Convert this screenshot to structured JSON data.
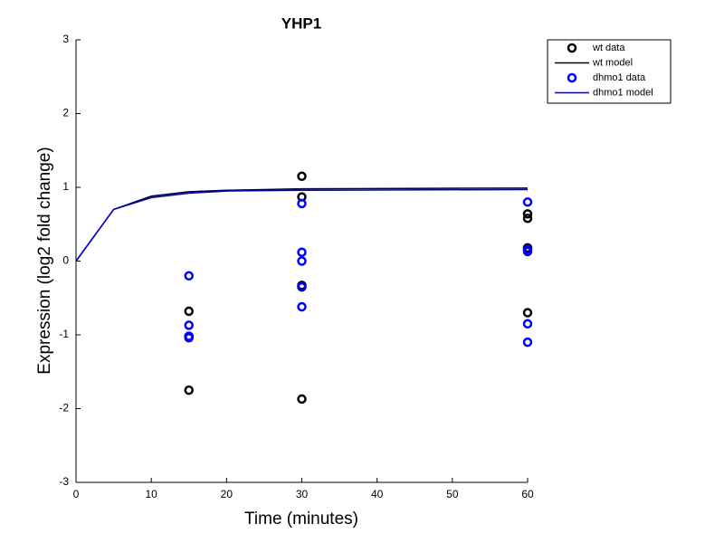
{
  "chart_data": {
    "type": "scatter",
    "title": "YHP1",
    "x_label": "Time (minutes)",
    "y_label": "Expression (log2 fold change)",
    "xlim": [
      0,
      60
    ],
    "ylim": [
      -3,
      3
    ],
    "xticks": [
      0,
      10,
      20,
      30,
      40,
      50,
      60
    ],
    "yticks": [
      -3,
      -2,
      -1,
      0,
      1,
      2,
      3
    ],
    "legend": "upper right",
    "series": [
      {
        "name": "wt data",
        "mode": "markers",
        "color": "#000000",
        "x": [
          15,
          15,
          15,
          30,
          30,
          30,
          30,
          30,
          60,
          60,
          60,
          60,
          60
        ],
        "values": [
          -0.68,
          -1.02,
          -1.75,
          1.15,
          0.87,
          -0.33,
          -0.35,
          -1.87,
          0.64,
          0.58,
          0.18,
          0.17,
          -0.7
        ]
      },
      {
        "name": "wt model",
        "mode": "line",
        "color": "#000000",
        "x": [
          0,
          5,
          10,
          15,
          20,
          30,
          60
        ],
        "values": [
          0,
          0.7,
          0.88,
          0.94,
          0.96,
          0.98,
          0.99
        ]
      },
      {
        "name": "dhmo1 data",
        "mode": "markers",
        "color": "#0000ff",
        "x": [
          15,
          15,
          15,
          15,
          30,
          30,
          30,
          30,
          30,
          60,
          60,
          60,
          60,
          60
        ],
        "values": [
          -0.2,
          -0.87,
          -1.02,
          -1.04,
          0.78,
          0.12,
          0.0,
          -0.35,
          -0.62,
          0.8,
          0.15,
          0.13,
          -0.85,
          -1.1
        ]
      },
      {
        "name": "dhmo1 model",
        "mode": "line",
        "color": "#0000cc",
        "x": [
          0,
          5,
          10,
          15,
          20,
          30,
          60
        ],
        "values": [
          0,
          0.7,
          0.86,
          0.92,
          0.95,
          0.96,
          0.97
        ]
      }
    ]
  }
}
